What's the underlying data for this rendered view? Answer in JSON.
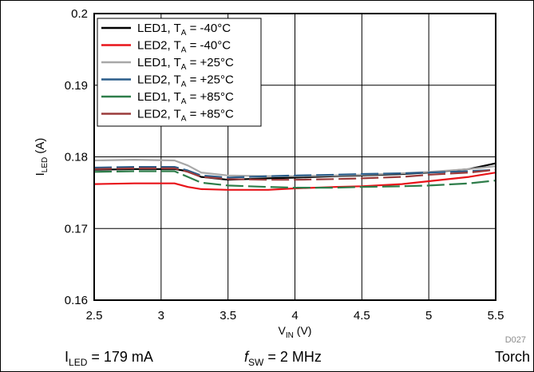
{
  "chart_data": {
    "type": "line",
    "xlabel": {
      "main": "V",
      "sub": "IN",
      "unit": " (V)"
    },
    "ylabel": {
      "main": "I",
      "sub": "LED",
      "unit": " (A)"
    },
    "xlim": [
      2.5,
      5.5
    ],
    "ylim": [
      0.16,
      0.2
    ],
    "xticks": [
      2.5,
      3,
      3.5,
      4,
      4.5,
      5,
      5.5
    ],
    "xtick_labels": [
      "2.5",
      "3",
      "3.5",
      "4",
      "4.5",
      "5",
      "5.5"
    ],
    "yticks": [
      0.16,
      0.17,
      0.18,
      0.19,
      0.2
    ],
    "ytick_labels": [
      "0.16",
      "0.17",
      "0.18",
      "0.19",
      "0.2"
    ],
    "grid": true,
    "legend_position": "top-left",
    "figure_id": "D027",
    "series": [
      {
        "name": {
          "main": "LED1, T",
          "sub": "A",
          "rest": " = -40°C"
        },
        "color": "#000000",
        "dash": "solid",
        "x": [
          2.5,
          2.8,
          3.1,
          3.2,
          3.3,
          3.5,
          3.8,
          4.0,
          4.3,
          4.5,
          4.8,
          5.0,
          5.3,
          5.5
        ],
        "y": [
          0.1782,
          0.1783,
          0.1783,
          0.178,
          0.1772,
          0.1768,
          0.177,
          0.1771,
          0.1773,
          0.1774,
          0.1776,
          0.1778,
          0.1783,
          0.1791
        ]
      },
      {
        "name": {
          "main": "LED2, T",
          "sub": "A",
          "rest": " = -40°C"
        },
        "color": "#e8141a",
        "dash": "solid",
        "x": [
          2.5,
          2.8,
          3.1,
          3.2,
          3.3,
          3.5,
          3.8,
          3.9,
          4.0,
          4.3,
          4.5,
          4.8,
          5.0,
          5.3,
          5.5
        ],
        "y": [
          0.1762,
          0.1763,
          0.1763,
          0.1758,
          0.1755,
          0.1754,
          0.1754,
          0.1755,
          0.1756,
          0.1758,
          0.1759,
          0.1762,
          0.1766,
          0.1772,
          0.1778
        ]
      },
      {
        "name": {
          "main": "LED1, T",
          "sub": "A",
          "rest": " = +25°C"
        },
        "color": "#a8a8a8",
        "dash": "solid",
        "x": [
          2.5,
          2.8,
          3.1,
          3.2,
          3.3,
          3.5,
          3.8,
          4.0,
          4.3,
          4.5,
          4.8,
          5.0,
          5.3,
          5.5
        ],
        "y": [
          0.1795,
          0.1796,
          0.1795,
          0.1788,
          0.1778,
          0.1774,
          0.1773,
          0.1773,
          0.1774,
          0.1775,
          0.1777,
          0.1779,
          0.1783,
          0.1787
        ]
      },
      {
        "name": {
          "main": "LED2, T",
          "sub": "A",
          "rest": " = +25°C"
        },
        "color": "#2a5d8a",
        "dash": "dash",
        "x": [
          2.5,
          2.8,
          3.1,
          3.2,
          3.3,
          3.5,
          3.8,
          4.0,
          4.3,
          4.5,
          4.8,
          5.0,
          5.3,
          5.5
        ],
        "y": [
          0.1785,
          0.1786,
          0.1786,
          0.1781,
          0.1774,
          0.1771,
          0.1773,
          0.1774,
          0.1775,
          0.1776,
          0.1777,
          0.1778,
          0.178,
          0.1782
        ]
      },
      {
        "name": {
          "main": "LED1, T",
          "sub": "A",
          "rest": " = +85°C"
        },
        "color": "#2e7d4a",
        "dash": "dash",
        "x": [
          2.5,
          2.8,
          3.1,
          3.2,
          3.3,
          3.5,
          3.8,
          4.0,
          4.3,
          4.5,
          4.8,
          5.0,
          5.3,
          5.5
        ],
        "y": [
          0.1779,
          0.178,
          0.178,
          0.1772,
          0.1764,
          0.176,
          0.1758,
          0.1757,
          0.1757,
          0.1758,
          0.1759,
          0.176,
          0.1763,
          0.1767
        ]
      },
      {
        "name": {
          "main": "LED2, T",
          "sub": "A",
          "rest": " = +85°C"
        },
        "color": "#9b3b3b",
        "dash": "dash",
        "x": [
          2.5,
          2.8,
          3.1,
          3.2,
          3.3,
          3.5,
          3.8,
          4.0,
          4.3,
          4.5,
          4.8,
          5.0,
          5.3,
          5.5
        ],
        "y": [
          0.1783,
          0.1784,
          0.1784,
          0.1779,
          0.1772,
          0.1769,
          0.1768,
          0.1768,
          0.1769,
          0.177,
          0.1772,
          0.1775,
          0.1778,
          0.1782
        ]
      }
    ]
  },
  "footer": {
    "iled": {
      "main": "I",
      "sub": "LED",
      "rest": " = 179 mA"
    },
    "fsw": {
      "main": "f",
      "sub": "SW",
      "rest": " = 2 MHz"
    },
    "mode": "Torch"
  }
}
